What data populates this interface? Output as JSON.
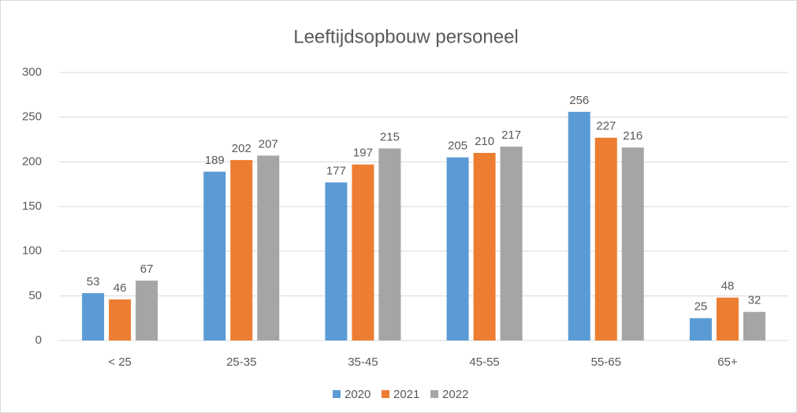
{
  "chart_data": {
    "type": "bar",
    "title": "Leeftijdsopbouw personeel",
    "categories": [
      "< 25",
      "25-35",
      "35-45",
      "45-55",
      "55-65",
      "65+"
    ],
    "series": [
      {
        "name": "2020",
        "color": "#5b9bd5",
        "values": [
          53,
          189,
          177,
          205,
          256,
          25
        ]
      },
      {
        "name": "2021",
        "color": "#ed7d31",
        "values": [
          46,
          202,
          197,
          210,
          227,
          48
        ]
      },
      {
        "name": "2022",
        "color": "#a5a5a5",
        "values": [
          67,
          207,
          215,
          217,
          216,
          32
        ]
      }
    ],
    "ylim": [
      0,
      300
    ],
    "yticks": [
      0,
      50,
      100,
      150,
      200,
      250,
      300
    ],
    "grid": true,
    "legend": "bottom"
  }
}
